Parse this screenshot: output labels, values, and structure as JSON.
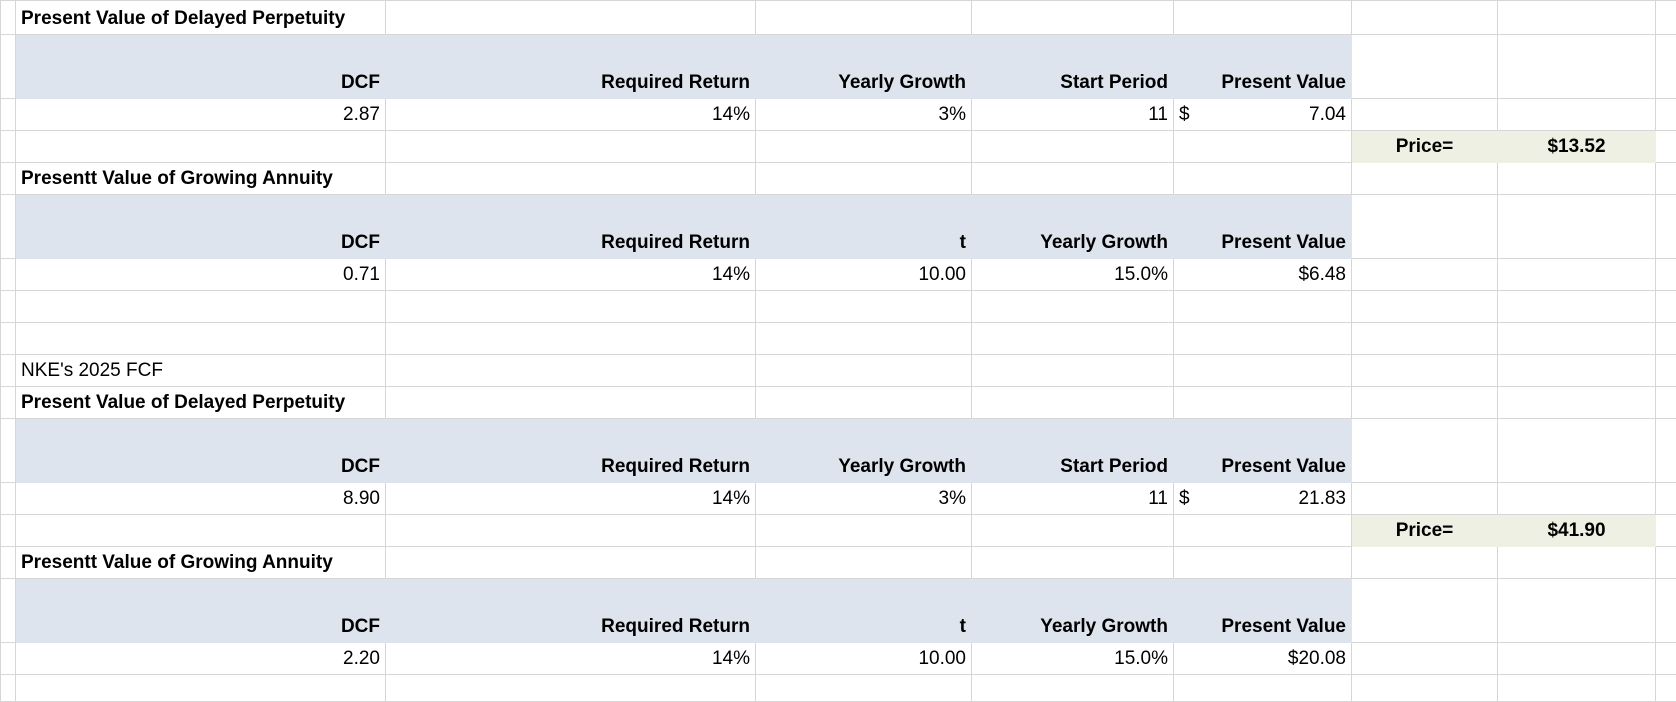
{
  "first_set": [
    {
      "title": "Present Value of Delayed Perpetuity",
      "headers": [
        "DCF",
        "Required Return",
        "Yearly Growth",
        "Start Period",
        "Present Value"
      ],
      "values": [
        "2.87",
        "14%",
        "3%",
        "11",
        {
          "currency": "$",
          "amount": "7.04"
        }
      ],
      "price": {
        "label": "Price=",
        "value": "$13.52"
      }
    },
    {
      "title": "Presentt Value of Growing Annuity",
      "headers": [
        "DCF",
        "Required Return",
        "t",
        "Yearly Growth",
        "Present Value"
      ],
      "values": [
        "0.71",
        "14%",
        "10.00",
        "15.0%",
        "$6.48"
      ]
    }
  ],
  "note": "NKE's 2025 FCF",
  "second_set": [
    {
      "title": "Present Value of Delayed Perpetuity",
      "headers": [
        "DCF",
        "Required Return",
        "Yearly Growth",
        "Start Period",
        "Present Value"
      ],
      "values": [
        "8.90",
        "14%",
        "3%",
        "11",
        {
          "currency": "$",
          "amount": "21.83"
        }
      ],
      "price": {
        "label": "Price=",
        "value": "$41.90"
      }
    },
    {
      "title": "Presentt Value of Growing Annuity",
      "headers": [
        "DCF",
        "Required Return",
        "t",
        "Yearly Growth",
        "Present Value"
      ],
      "values": [
        "2.20",
        "14%",
        "10.00",
        "15.0%",
        "$20.08"
      ]
    }
  ]
}
